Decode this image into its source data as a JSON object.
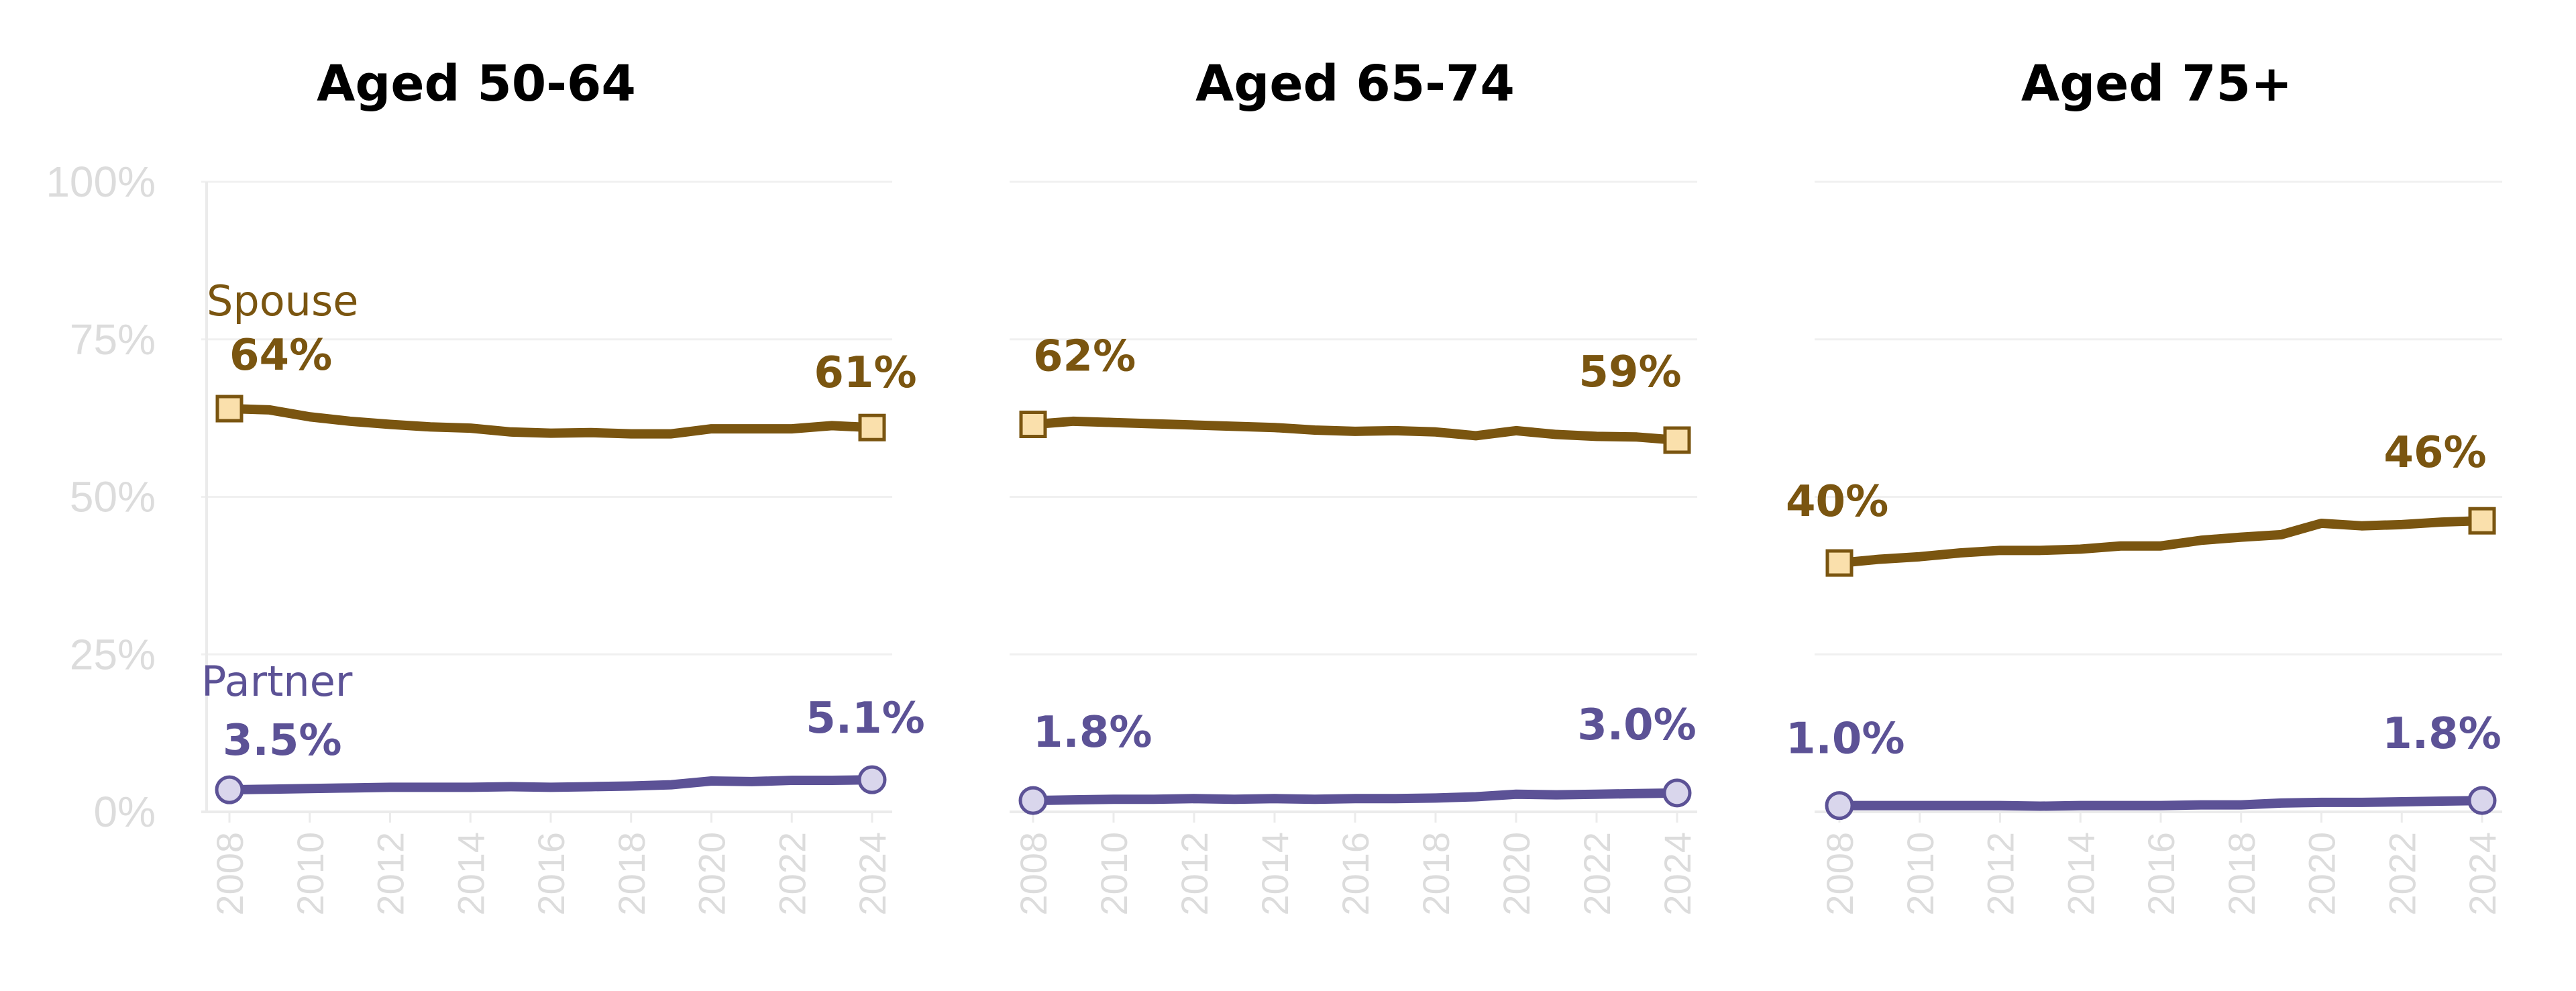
{
  "colors": {
    "spouse_line": "#7a5510",
    "spouse_marker_fill": "#fae0ac",
    "partner_line": "#5c5296",
    "partner_marker_fill": "#d9d6ec",
    "grid": "#f0f0f0",
    "axis": "#ebebeb",
    "tick_text": "#dcdcdc"
  },
  "y_ticks": [
    "100%",
    "75%",
    "50%",
    "25%",
    "0%"
  ],
  "chart_data": [
    {
      "type": "line",
      "title": "Aged 50-64",
      "x": [
        2008,
        2009,
        2010,
        2011,
        2012,
        2013,
        2014,
        2015,
        2016,
        2017,
        2018,
        2019,
        2020,
        2021,
        2022,
        2023,
        2024
      ],
      "x_ticks": [
        "2008",
        "2010",
        "2012",
        "2014",
        "2016",
        "2018",
        "2020",
        "2022",
        "2024"
      ],
      "ylim": [
        0,
        100
      ],
      "grid": true,
      "series": [
        {
          "name": "Spouse",
          "values": [
            64,
            63.8,
            62.7,
            62,
            61.5,
            61.1,
            60.9,
            60.3,
            60.1,
            60.2,
            60,
            60,
            60.8,
            60.8,
            60.8,
            61.3,
            61
          ],
          "start_label": "64%",
          "end_label": "61%"
        },
        {
          "name": "Partner",
          "values": [
            3.5,
            3.6,
            3.7,
            3.8,
            3.9,
            3.9,
            3.9,
            4.0,
            3.9,
            4.0,
            4.1,
            4.3,
            4.9,
            4.8,
            5.0,
            5.0,
            5.1
          ],
          "start_label": "3.5%",
          "end_label": "5.1%"
        }
      ]
    },
    {
      "type": "line",
      "title": "Aged 65-74",
      "x": [
        2008,
        2009,
        2010,
        2011,
        2012,
        2013,
        2014,
        2015,
        2016,
        2017,
        2018,
        2019,
        2020,
        2021,
        2022,
        2023,
        2024
      ],
      "x_ticks": [
        "2008",
        "2010",
        "2012",
        "2014",
        "2016",
        "2018",
        "2020",
        "2022",
        "2024"
      ],
      "ylim": [
        0,
        100
      ],
      "grid": true,
      "series": [
        {
          "name": "",
          "values": [
            61.5,
            62,
            61.8,
            61.6,
            61.4,
            61.2,
            61,
            60.6,
            60.4,
            60.5,
            60.3,
            59.7,
            60.5,
            59.9,
            59.6,
            59.5,
            59
          ],
          "start_label": "62%",
          "end_label": "59%"
        },
        {
          "name": "",
          "values": [
            1.8,
            1.9,
            2.0,
            2.0,
            2.1,
            2.0,
            2.1,
            2.0,
            2.1,
            2.1,
            2.2,
            2.4,
            2.8,
            2.7,
            2.8,
            2.9,
            3.0
          ],
          "start_label": "1.8%",
          "end_label": "3.0%"
        }
      ]
    },
    {
      "type": "line",
      "title": "Aged 75+",
      "x": [
        2008,
        2009,
        2010,
        2011,
        2012,
        2013,
        2014,
        2015,
        2016,
        2017,
        2018,
        2019,
        2020,
        2021,
        2022,
        2023,
        2024
      ],
      "x_ticks": [
        "2008",
        "2010",
        "2012",
        "2014",
        "2016",
        "2018",
        "2020",
        "2022",
        "2024"
      ],
      "ylim": [
        0,
        100
      ],
      "grid": true,
      "series": [
        {
          "name": "",
          "values": [
            39.5,
            40.1,
            40.5,
            41.1,
            41.5,
            41.5,
            41.7,
            42.2,
            42.2,
            43.1,
            43.6,
            44,
            45.8,
            45.4,
            45.6,
            46,
            46.2
          ],
          "start_label": "40%",
          "end_label": "46%"
        },
        {
          "name": "",
          "values": [
            1.0,
            1.0,
            1.0,
            1.0,
            1.0,
            0.9,
            1.0,
            1.0,
            1.0,
            1.1,
            1.1,
            1.4,
            1.5,
            1.5,
            1.6,
            1.7,
            1.8
          ],
          "start_label": "1.0%",
          "end_label": "1.8%"
        }
      ]
    }
  ]
}
